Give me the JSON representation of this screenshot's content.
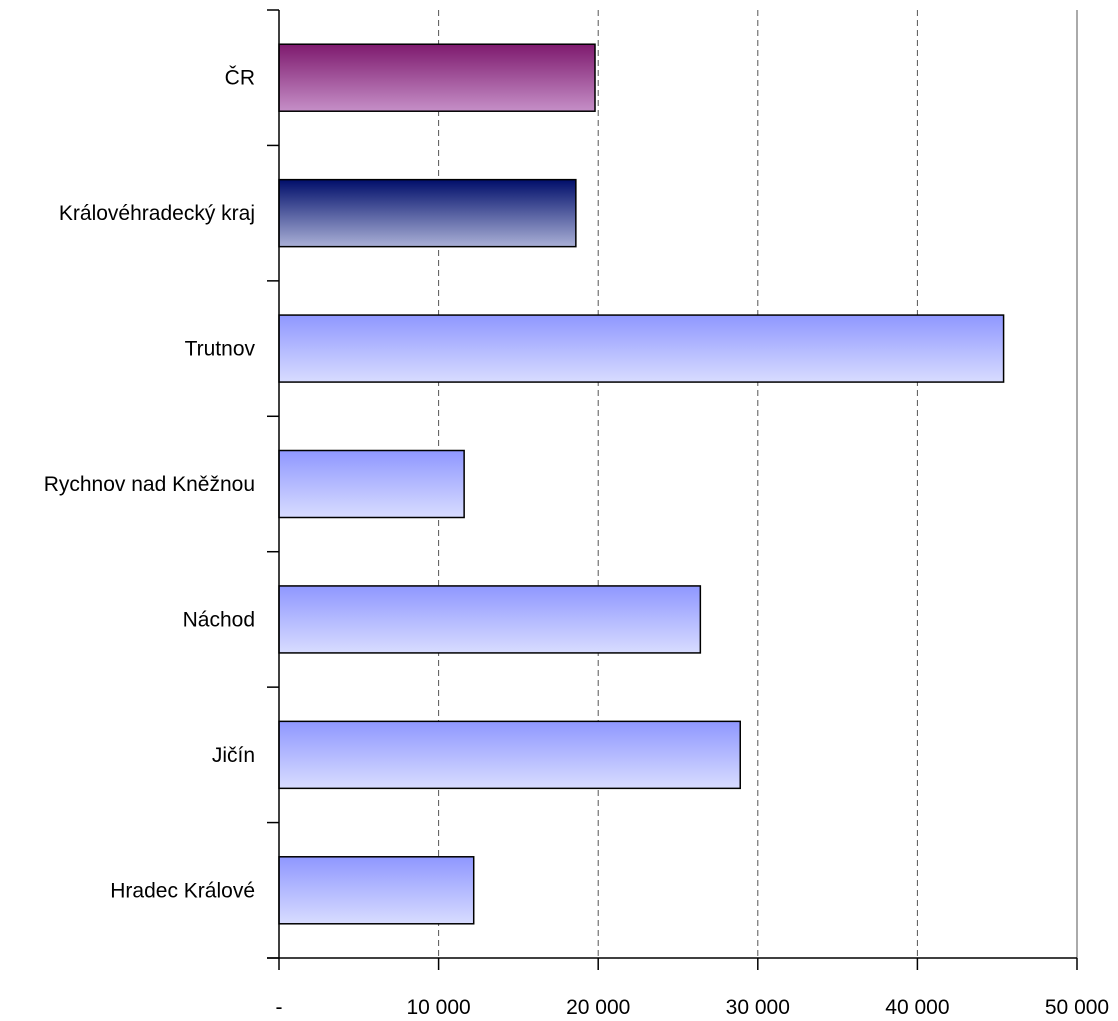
{
  "chart_data": {
    "type": "bar",
    "orientation": "horizontal",
    "categories": [
      "ČR",
      "Královéhradecký kraj",
      "Trutnov",
      "Rychnov nad Kněžnou",
      "Náchod",
      "Jičín",
      "Hradec Králové"
    ],
    "values": [
      19800,
      18600,
      45400,
      11600,
      26400,
      28900,
      12200
    ],
    "xlim": [
      0,
      50000
    ],
    "x_ticks": [
      0,
      10000,
      20000,
      30000,
      40000,
      50000
    ],
    "x_tick_labels": [
      "-",
      "10 000",
      "20 000",
      "30 000",
      "40 000",
      "50 000"
    ],
    "grid": "vertical dashed",
    "bar_colors": {
      "ČR": [
        "#7e1a6e",
        "#c58fc7"
      ],
      "Královéhradecký kraj": [
        "#000e6a",
        "#aab0d6"
      ],
      "default": [
        "#8f97ff",
        "#d8dcff"
      ]
    },
    "title": "",
    "xlabel": "",
    "ylabel": ""
  }
}
